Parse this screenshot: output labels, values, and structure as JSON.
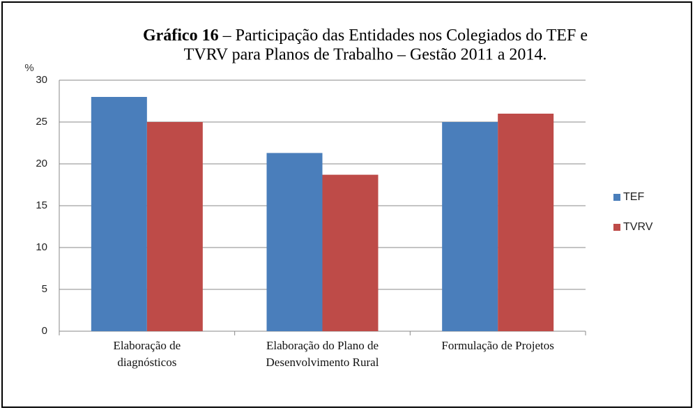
{
  "chart_data": {
    "type": "bar",
    "title": [
      "Gráfico 16",
      " – Participação das Entidades nos Colegiados do TEF e",
      "TVRV para Planos de Trabalho – Gestão 2011 a 2014."
    ],
    "ylabel": "%",
    "categories": [
      [
        "Elaboração de",
        "diagnósticos"
      ],
      [
        "Elaboração do Plano de",
        "Desenvolvimento Rural"
      ],
      [
        "Formulação de Projetos"
      ]
    ],
    "series": [
      {
        "name": "TEF",
        "color": "#4a7ebb",
        "values": [
          28,
          21.3,
          25
        ]
      },
      {
        "name": "TVRV",
        "color": "#be4b48",
        "values": [
          25,
          18.7,
          26
        ]
      }
    ],
    "ylim": [
      0,
      30
    ],
    "yticks": [
      0,
      5,
      10,
      15,
      20,
      25,
      30
    ],
    "grid": true,
    "legend": "right"
  }
}
